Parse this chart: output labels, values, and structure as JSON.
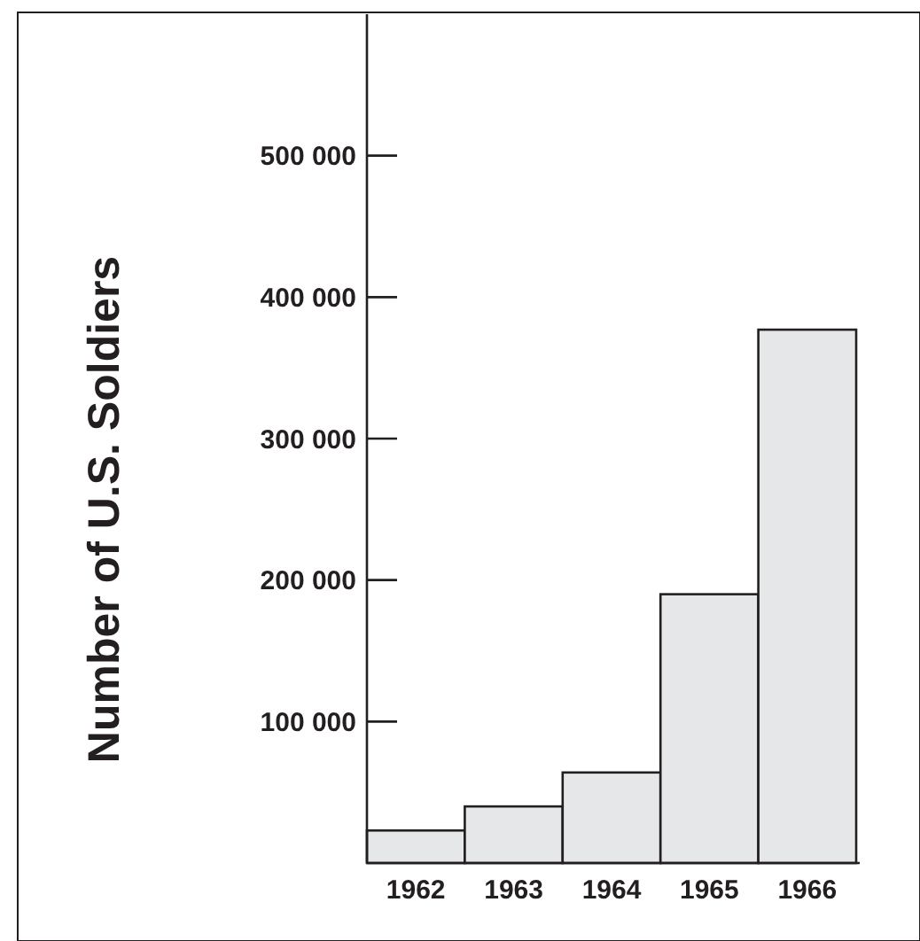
{
  "chart_data": {
    "type": "bar",
    "ylabel": "Number of U.S. Soldiers",
    "categories": [
      "1962",
      "1963",
      "1964",
      "1965",
      "1966"
    ],
    "values": [
      23000,
      40000,
      64000,
      190000,
      377000
    ],
    "color": "#e6e7e8",
    "ylim": [
      0,
      600000
    ],
    "yticks": [
      {
        "value": 100000,
        "label": "100 000"
      },
      {
        "value": 200000,
        "label": "200 000"
      },
      {
        "value": 300000,
        "label": "300 000"
      },
      {
        "value": 400000,
        "label": "400 000"
      },
      {
        "value": 500000,
        "label": "500 000"
      }
    ],
    "grid": false
  }
}
